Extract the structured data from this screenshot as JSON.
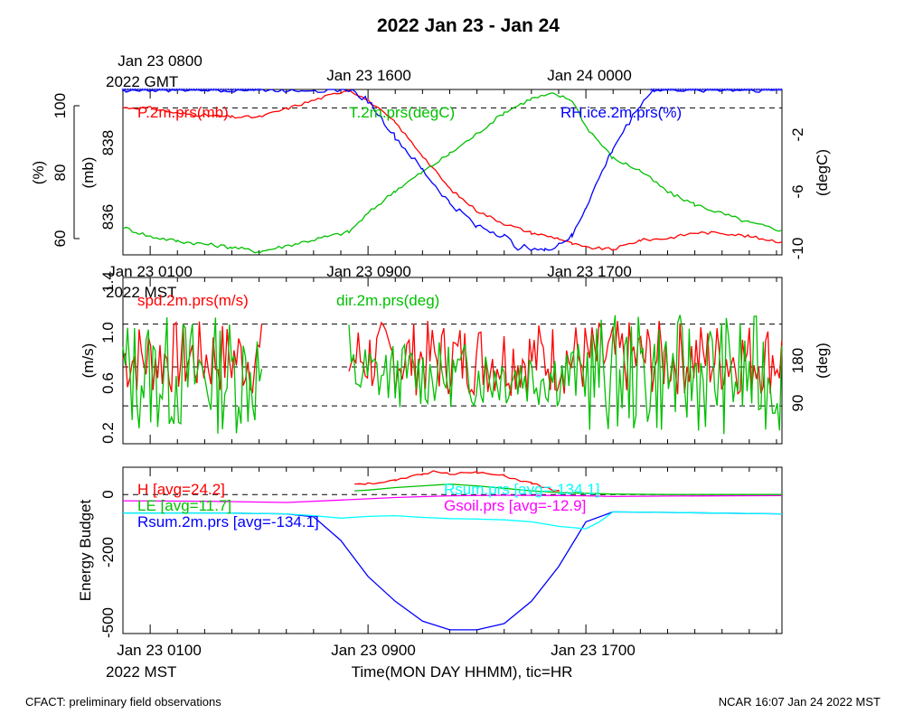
{
  "title": "2022 Jan 23 - Jan 24",
  "top_axis": {
    "labels": [
      "Jan 23 0800",
      "Jan 23 1600",
      "Jan 24 0000"
    ],
    "sublabel": "2022 GMT"
  },
  "mid_axis": {
    "labels": [
      "Jan 23 0100",
      "Jan 23 0900",
      "Jan 23 1700"
    ],
    "sublabel": "2022 MST"
  },
  "bottom_axis": {
    "labels": [
      "Jan 23 0100",
      "Jan 23 0900",
      "Jan 23 1700"
    ],
    "sublabel": "2022 MST",
    "xlabel": "Time(MON DAY HHMM), tic=HR"
  },
  "footer": {
    "left": "CFACT: preliminary field observations",
    "right": "NCAR 16:07 Jan 24 2022 MST"
  },
  "colors": {
    "red": "#ff0000",
    "green": "#00c000",
    "blue": "#0000ff",
    "cyan": "#00ffff",
    "magenta": "#ff00ff",
    "black": "#000000"
  },
  "chart_data": [
    {
      "type": "line",
      "panel": "pressure-temperature-humidity",
      "x_unit": "hours since Jan 23 0000 MST",
      "xlim": [
        0,
        24.2
      ],
      "ylabel_rh": "(%)",
      "ylabel_p": "(mb)",
      "ylabel_t": "(degC)",
      "rh_ticks": [
        "60",
        "80",
        "100"
      ],
      "p_ticks": [
        "836",
        "838"
      ],
      "t_ticks": [
        "-10",
        "-6",
        "-2"
      ],
      "rh_lim": [
        59,
        104
      ],
      "p_lim": [
        835.3,
        839.8
      ],
      "t_lim": [
        -10.5,
        0.3
      ],
      "legend": [
        "P.2m.prs(mb)",
        "T.2m.prs(degC)",
        "RH.ice.2m.prs(%)"
      ],
      "gaps": [
        [
          5.1,
          8.3
        ]
      ],
      "series": [
        {
          "name": "P.2m.prs(mb)",
          "color": "red",
          "axis": "p",
          "x": [
            0,
            1,
            2,
            3,
            4,
            5,
            8.3,
            9,
            10,
            11,
            12,
            13,
            14,
            15,
            16,
            16.5,
            17,
            18,
            19,
            20,
            21,
            22,
            23,
            24.2
          ],
          "y": [
            839.3,
            839.3,
            839.15,
            839.1,
            839.05,
            839.05,
            839.8,
            839.5,
            838.9,
            838.0,
            837.1,
            836.5,
            836.15,
            835.9,
            835.75,
            835.6,
            835.5,
            835.45,
            835.7,
            835.75,
            835.9,
            835.9,
            835.8,
            835.65
          ]
        },
        {
          "name": "T.2m.prs(degC)",
          "color": "green",
          "axis": "t",
          "x": [
            0,
            1,
            2,
            3,
            4,
            5,
            8.3,
            9,
            10,
            11,
            12,
            13,
            14,
            15,
            15.8,
            16.5,
            17,
            18,
            19,
            20,
            21,
            22,
            23,
            24.2
          ],
          "y": [
            -8.7,
            -9.3,
            -9.6,
            -9.8,
            -10.0,
            -10.3,
            -9.0,
            -7.8,
            -6.3,
            -5.1,
            -3.9,
            -2.6,
            -1.2,
            -0.3,
            0.0,
            -0.4,
            -2.1,
            -4.2,
            -5.0,
            -6.4,
            -7.2,
            -7.8,
            -8.4,
            -8.9
          ]
        },
        {
          "name": "RH.ice.2m.prs(%)",
          "color": "blue",
          "axis": "rh",
          "x": [
            0,
            5,
            8.3,
            9,
            10,
            11,
            12,
            13,
            14,
            14.5,
            15,
            15.5,
            16,
            16.5,
            17,
            18,
            19,
            19.5,
            20,
            24.2
          ],
          "y": [
            104,
            104,
            104,
            101,
            91,
            82,
            73,
            67,
            64,
            61,
            61,
            60,
            62,
            64,
            72,
            88,
            100,
            104,
            104,
            104
          ]
        }
      ],
      "ref_lines": [
        {
          "axis": "rh",
          "y": 99
        }
      ]
    },
    {
      "type": "line",
      "panel": "wind",
      "x_unit": "hours since Jan 23 0000 MST",
      "xlim": [
        0,
        24.2
      ],
      "ylabel_left": "(m/s)",
      "ylabel_right": "(deg)",
      "spd_ticks": [
        "0.2",
        "0.6",
        "1.0",
        "1.4"
      ],
      "dir_ticks": [
        "90",
        "180"
      ],
      "spd_lim": [
        0.1,
        1.42
      ],
      "dir_lim": [
        0,
        360
      ],
      "legend": [
        "spd.2m.prs(m/s)",
        "dir.2m.prs(deg)"
      ],
      "gaps": [
        [
          5.1,
          8.3
        ]
      ],
      "series": [
        {
          "name": "spd.2m.prs(m/s)",
          "color": "red",
          "axis": "spd",
          "mean": 0.78,
          "amp": 0.3,
          "seed": 7,
          "segments": [
            [
              0,
              5.1
            ],
            [
              8.3,
              24.2
            ]
          ]
        },
        {
          "name": "dir.2m.prs(deg)",
          "color": "green",
          "axis": "dir",
          "mean": 150,
          "amp": 130,
          "seed": 13,
          "segments": [
            [
              0,
              5.1
            ],
            [
              8.3,
              24.2
            ]
          ]
        }
      ],
      "ref_lines": [
        {
          "axis": "spd",
          "y": 0.4
        },
        {
          "axis": "spd",
          "y": 0.71
        },
        {
          "axis": "spd",
          "y": 1.05
        }
      ]
    },
    {
      "type": "line",
      "panel": "energy-budget",
      "x_unit": "hours since Jan 23 0000 MST",
      "xlim": [
        0,
        24.2
      ],
      "ylabel": "Energy Budget",
      "y_ticks": [
        "-500",
        "-200",
        "0"
      ],
      "ylim": [
        -560,
        110
      ],
      "legend": [
        {
          "label": "H [avg=24.2]",
          "color": "red"
        },
        {
          "label": "LE [avg=11.7]",
          "color": "green"
        },
        {
          "label": "Rsum.2m.prs [avg=-134.1]",
          "color": "blue"
        },
        {
          "label": "Rsum.prs [avg=-134.1]",
          "color": "cyan"
        },
        {
          "label": "Gsoil.prs [avg=-12.9]",
          "color": "magenta"
        }
      ],
      "series": [
        {
          "name": "Rsum.2m.prs",
          "color": "blue",
          "x": [
            0,
            2,
            4,
            6,
            7,
            8,
            9,
            10,
            11,
            12,
            13,
            14,
            15,
            16,
            17,
            18,
            20,
            22,
            24.2
          ],
          "y": [
            -75,
            -75,
            -75,
            -78,
            -90,
            -185,
            -330,
            -430,
            -510,
            -545,
            -545,
            -520,
            -430,
            -290,
            -110,
            -70,
            -72,
            -75,
            -78
          ]
        },
        {
          "name": "Rsum.prs",
          "color": "cyan",
          "x": [
            0,
            4,
            6,
            7,
            8,
            9,
            10,
            11,
            12,
            13,
            14,
            15,
            16,
            17,
            17.5,
            18,
            20,
            24.2
          ],
          "y": [
            -75,
            -75,
            -78,
            -85,
            -95,
            -88,
            -85,
            -92,
            -97,
            -99,
            -102,
            -110,
            -128,
            -138,
            -110,
            -70,
            -72,
            -78
          ]
        },
        {
          "name": "Gsoil.prs",
          "color": "magenta",
          "x": [
            0,
            3,
            6,
            8,
            10,
            12,
            14,
            16,
            17,
            18,
            20,
            24.2
          ],
          "y": [
            -25,
            -27,
            -32,
            -22,
            -12,
            -5,
            -3,
            -4,
            -5,
            -8,
            -6,
            -4
          ]
        },
        {
          "name": "H",
          "color": "red",
          "x": [
            8.5,
            9,
            10,
            11,
            11.5,
            12,
            13,
            14,
            15,
            16
          ],
          "y": [
            45,
            45,
            55,
            82,
            95,
            85,
            88,
            75,
            45,
            12
          ]
        },
        {
          "name": "LE",
          "color": "green",
          "x": [
            8.5,
            9,
            10,
            11,
            12,
            13,
            14,
            15,
            16,
            17,
            18,
            20,
            24.2
          ],
          "y": [
            15,
            18,
            28,
            35,
            42,
            35,
            25,
            15,
            8,
            5,
            2,
            0,
            0
          ]
        }
      ],
      "ref_lines": [
        {
          "y": 0
        }
      ]
    }
  ]
}
